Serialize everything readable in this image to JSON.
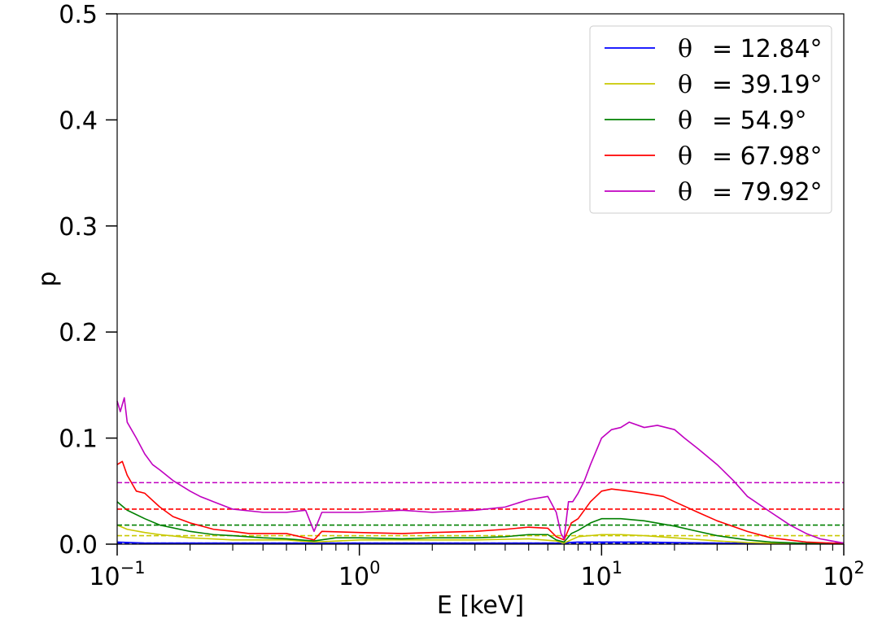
{
  "chart_data": {
    "type": "line",
    "xlabel": "E [keV]",
    "ylabel": "p",
    "xscale": "log",
    "xlim": [
      0.1,
      100
    ],
    "ylim": [
      0,
      0.5
    ],
    "x_ticks": [
      0.1,
      1,
      10,
      100
    ],
    "x_tick_labels": [
      {
        "base": "10",
        "exp": "−1"
      },
      {
        "base": "10",
        "exp": "0"
      },
      {
        "base": "10",
        "exp": "1"
      },
      {
        "base": "10",
        "exp": "2"
      }
    ],
    "y_ticks": [
      0.0,
      0.1,
      0.2,
      0.3,
      0.4,
      0.5
    ],
    "y_tick_labels": [
      "0.0",
      "0.1",
      "0.2",
      "0.3",
      "0.4",
      "0.5"
    ],
    "grid": false,
    "legend_position": "top-right",
    "theta_symbol": "θ",
    "series": [
      {
        "name": "= 12.84°",
        "color": "#0000ff",
        "dashed_level": 0.001,
        "points": [
          [
            0.1,
            0.002
          ],
          [
            0.13,
            0.001
          ],
          [
            0.2,
            0.001
          ],
          [
            0.5,
            0.001
          ],
          [
            1,
            0.001
          ],
          [
            3,
            0.001
          ],
          [
            6.5,
            0.001
          ],
          [
            8,
            0.002
          ],
          [
            10,
            0.002
          ],
          [
            15,
            0.002
          ],
          [
            20,
            0.0015
          ],
          [
            30,
            0.001
          ],
          [
            50,
            0.0005
          ],
          [
            100,
            0.0002
          ]
        ]
      },
      {
        "name": "= 39.19°",
        "color": "#c8c800",
        "dashed_level": 0.008,
        "points": [
          [
            0.1,
            0.018
          ],
          [
            0.11,
            0.014
          ],
          [
            0.13,
            0.011
          ],
          [
            0.15,
            0.009
          ],
          [
            0.2,
            0.006
          ],
          [
            0.3,
            0.004
          ],
          [
            0.5,
            0.004
          ],
          [
            0.65,
            0.002
          ],
          [
            1,
            0.004
          ],
          [
            2,
            0.004
          ],
          [
            3,
            0.004
          ],
          [
            5,
            0.005
          ],
          [
            6.5,
            0.003
          ],
          [
            7,
            0.001
          ],
          [
            8,
            0.007
          ],
          [
            10,
            0.009
          ],
          [
            12,
            0.009
          ],
          [
            15,
            0.008
          ],
          [
            20,
            0.006
          ],
          [
            30,
            0.003
          ],
          [
            40,
            0.0015
          ],
          [
            60,
            0.0005
          ],
          [
            100,
            0.0001
          ]
        ]
      },
      {
        "name": "= 54.9°",
        "color": "#008000",
        "dashed_level": 0.018,
        "points": [
          [
            0.1,
            0.04
          ],
          [
            0.11,
            0.032
          ],
          [
            0.13,
            0.024
          ],
          [
            0.15,
            0.018
          ],
          [
            0.2,
            0.012
          ],
          [
            0.25,
            0.009
          ],
          [
            0.3,
            0.008
          ],
          [
            0.4,
            0.006
          ],
          [
            0.5,
            0.005
          ],
          [
            0.65,
            0.003
          ],
          [
            0.8,
            0.006
          ],
          [
            1,
            0.006
          ],
          [
            1.5,
            0.005
          ],
          [
            2,
            0.006
          ],
          [
            3,
            0.006
          ],
          [
            4,
            0.007
          ],
          [
            5,
            0.009
          ],
          [
            6,
            0.009
          ],
          [
            6.5,
            0.004
          ],
          [
            7,
            0.002
          ],
          [
            7.5,
            0.01
          ],
          [
            8,
            0.013
          ],
          [
            9,
            0.02
          ],
          [
            10,
            0.024
          ],
          [
            12,
            0.024
          ],
          [
            15,
            0.022
          ],
          [
            20,
            0.017
          ],
          [
            25,
            0.012
          ],
          [
            30,
            0.008
          ],
          [
            40,
            0.004
          ],
          [
            50,
            0.002
          ],
          [
            70,
            0.0007
          ],
          [
            100,
            0.0002
          ]
        ]
      },
      {
        "name": "= 67.98°",
        "color": "#ff0000",
        "dashed_level": 0.033,
        "points": [
          [
            0.1,
            0.075
          ],
          [
            0.105,
            0.078
          ],
          [
            0.11,
            0.065
          ],
          [
            0.12,
            0.05
          ],
          [
            0.13,
            0.048
          ],
          [
            0.15,
            0.035
          ],
          [
            0.17,
            0.026
          ],
          [
            0.2,
            0.02
          ],
          [
            0.25,
            0.014
          ],
          [
            0.3,
            0.012
          ],
          [
            0.35,
            0.01
          ],
          [
            0.4,
            0.01
          ],
          [
            0.5,
            0.01
          ],
          [
            0.65,
            0.004
          ],
          [
            0.7,
            0.012
          ],
          [
            1,
            0.011
          ],
          [
            1.5,
            0.01
          ],
          [
            2,
            0.011
          ],
          [
            3,
            0.012
          ],
          [
            4,
            0.014
          ],
          [
            5,
            0.016
          ],
          [
            6,
            0.015
          ],
          [
            6.5,
            0.007
          ],
          [
            7,
            0.004
          ],
          [
            7.5,
            0.02
          ],
          [
            8,
            0.024
          ],
          [
            9,
            0.04
          ],
          [
            10,
            0.05
          ],
          [
            11,
            0.052
          ],
          [
            13,
            0.05
          ],
          [
            15,
            0.048
          ],
          [
            18,
            0.045
          ],
          [
            20,
            0.04
          ],
          [
            25,
            0.03
          ],
          [
            30,
            0.022
          ],
          [
            40,
            0.012
          ],
          [
            50,
            0.006
          ],
          [
            70,
            0.002
          ],
          [
            100,
            0.0005
          ]
        ]
      },
      {
        "name": "= 79.92°",
        "color": "#c000c0",
        "dashed_level": 0.058,
        "points": [
          [
            0.1,
            0.135
          ],
          [
            0.103,
            0.125
          ],
          [
            0.107,
            0.138
          ],
          [
            0.11,
            0.115
          ],
          [
            0.12,
            0.1
          ],
          [
            0.13,
            0.085
          ],
          [
            0.14,
            0.075
          ],
          [
            0.15,
            0.07
          ],
          [
            0.17,
            0.06
          ],
          [
            0.2,
            0.05
          ],
          [
            0.22,
            0.045
          ],
          [
            0.25,
            0.04
          ],
          [
            0.3,
            0.033
          ],
          [
            0.4,
            0.03
          ],
          [
            0.5,
            0.03
          ],
          [
            0.6,
            0.032
          ],
          [
            0.65,
            0.012
          ],
          [
            0.7,
            0.03
          ],
          [
            1,
            0.03
          ],
          [
            1.5,
            0.032
          ],
          [
            2,
            0.03
          ],
          [
            3,
            0.032
          ],
          [
            4,
            0.035
          ],
          [
            5,
            0.042
          ],
          [
            6,
            0.045
          ],
          [
            6.5,
            0.03
          ],
          [
            6.8,
            0.01
          ],
          [
            7,
            0.005
          ],
          [
            7.3,
            0.04
          ],
          [
            7.6,
            0.04
          ],
          [
            8,
            0.048
          ],
          [
            8.5,
            0.06
          ],
          [
            9,
            0.075
          ],
          [
            10,
            0.1
          ],
          [
            11,
            0.108
          ],
          [
            12,
            0.11
          ],
          [
            13,
            0.115
          ],
          [
            15,
            0.11
          ],
          [
            17,
            0.112
          ],
          [
            20,
            0.108
          ],
          [
            22,
            0.1
          ],
          [
            25,
            0.09
          ],
          [
            30,
            0.075
          ],
          [
            35,
            0.06
          ],
          [
            40,
            0.045
          ],
          [
            50,
            0.03
          ],
          [
            60,
            0.018
          ],
          [
            70,
            0.01
          ],
          [
            80,
            0.005
          ],
          [
            100,
            0.001
          ]
        ]
      }
    ]
  }
}
